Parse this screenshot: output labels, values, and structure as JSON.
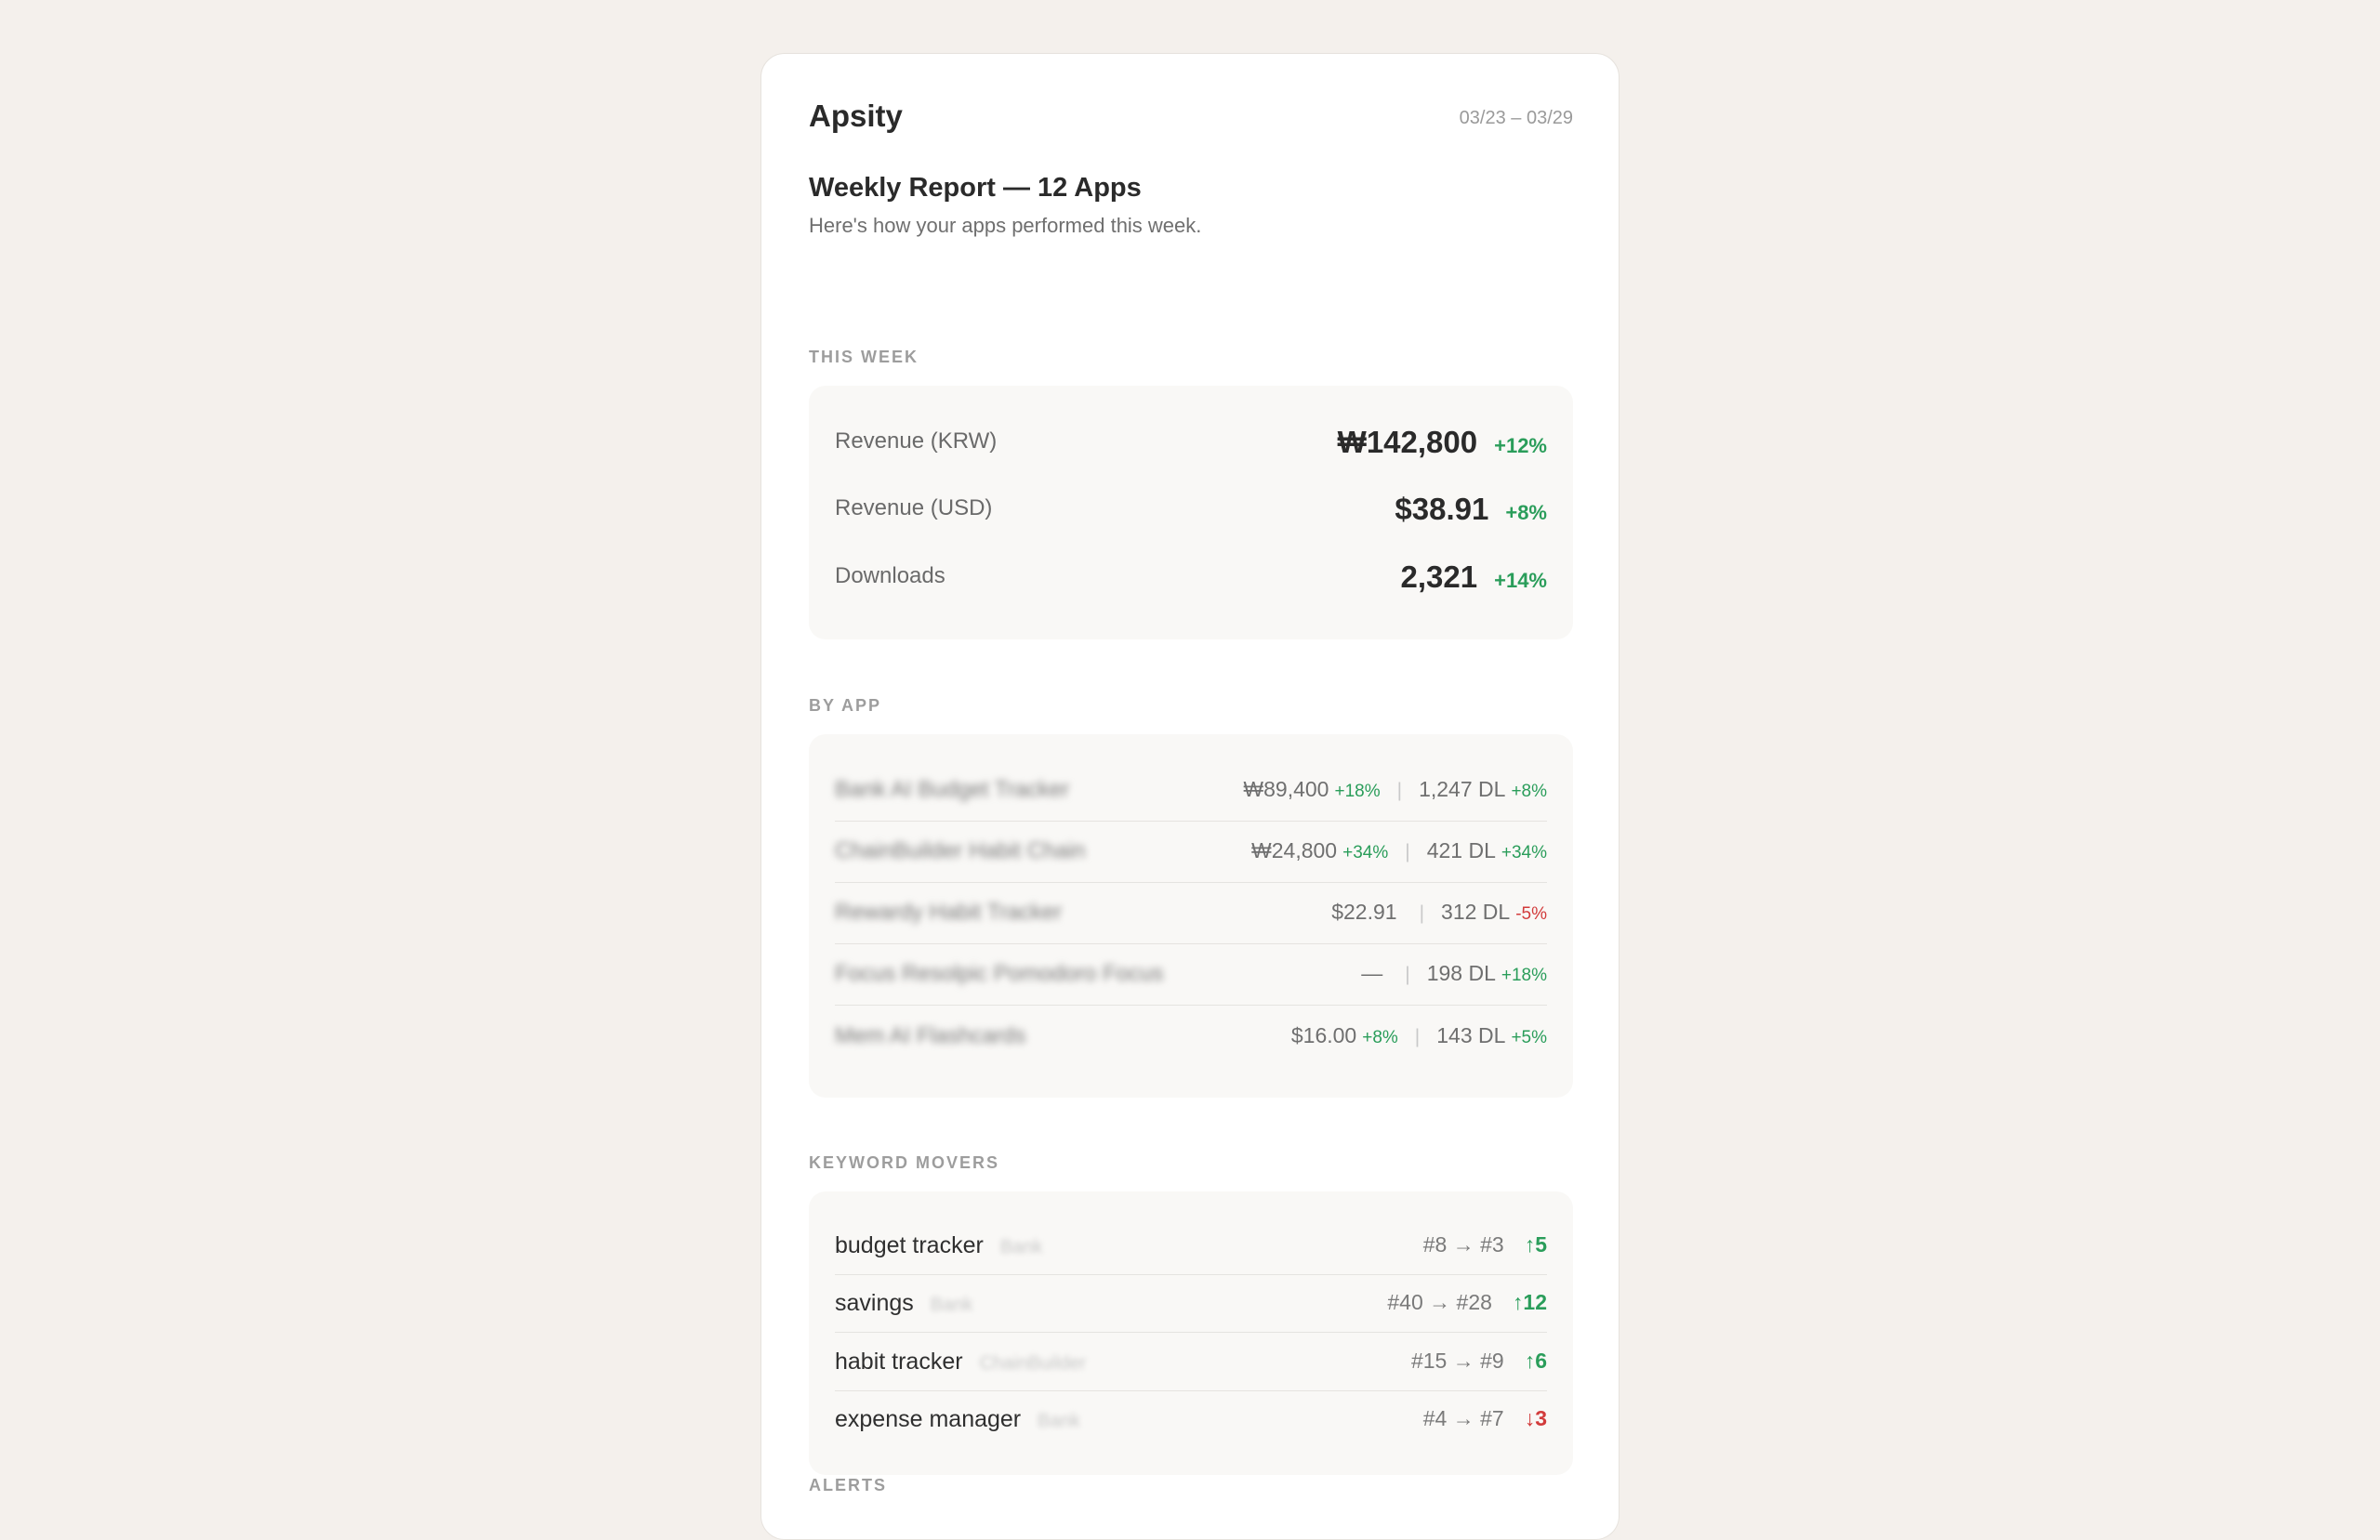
{
  "header": {
    "brand": "Apsity",
    "date_range": "03/23 – 03/29"
  },
  "report": {
    "title": "Weekly Report — 12 Apps",
    "subtitle": "Here's how your apps performed this week."
  },
  "this_week": {
    "label": "THIS WEEK",
    "stats": [
      {
        "label": "Revenue (KRW)",
        "value": "₩142,800",
        "change": "+12%"
      },
      {
        "label": "Revenue (USD)",
        "value": "$38.91",
        "change": "+8%"
      },
      {
        "label": "Downloads",
        "value": "2,321",
        "change": "+14%"
      }
    ]
  },
  "by_app": {
    "label": "BY APP",
    "apps": [
      {
        "name": "Bank AI Budget Tracker",
        "revenue": "₩89,400",
        "revenue_change": "+18%",
        "downloads": "1,247 DL",
        "downloads_change": "+8%",
        "downloads_negative": false
      },
      {
        "name": "ChainBuilder Habit Chain",
        "revenue": "₩24,800",
        "revenue_change": "+34%",
        "downloads": "421 DL",
        "downloads_change": "+34%",
        "downloads_negative": false
      },
      {
        "name": "Rewardy Habit Tracker",
        "revenue": "$22.91",
        "revenue_change": "",
        "downloads": "312 DL",
        "downloads_change": "-5%",
        "downloads_negative": true
      },
      {
        "name": "Focus Resolpic Pomodoro Focus",
        "revenue": "—",
        "revenue_change": "",
        "downloads": "198 DL",
        "downloads_change": "+18%",
        "downloads_negative": false
      },
      {
        "name": "Mem AI Flashcards",
        "revenue": "$16.00",
        "revenue_change": "+8%",
        "downloads": "143 DL",
        "downloads_change": "+5%",
        "downloads_negative": false
      }
    ]
  },
  "keyword_movers": {
    "label": "KEYWORD MOVERS",
    "keywords": [
      {
        "keyword": "budget tracker",
        "app": "Bank",
        "rank": "#8 → #3",
        "move": "↑5",
        "direction": "up"
      },
      {
        "keyword": "savings",
        "app": "Bank",
        "rank": "#40 → #28",
        "move": "↑12",
        "direction": "up"
      },
      {
        "keyword": "habit tracker",
        "app": "ChainBuilder",
        "rank": "#15 → #9",
        "move": "↑6",
        "direction": "up"
      },
      {
        "keyword": "expense manager",
        "app": "Bank",
        "rank": "#4 → #7",
        "move": "↓3",
        "direction": "down"
      }
    ]
  },
  "alerts": {
    "label": "ALERTS"
  },
  "colors": {
    "background": "#f4f0ec",
    "positive": "#2a9d5a",
    "negative": "#d23b3b"
  }
}
